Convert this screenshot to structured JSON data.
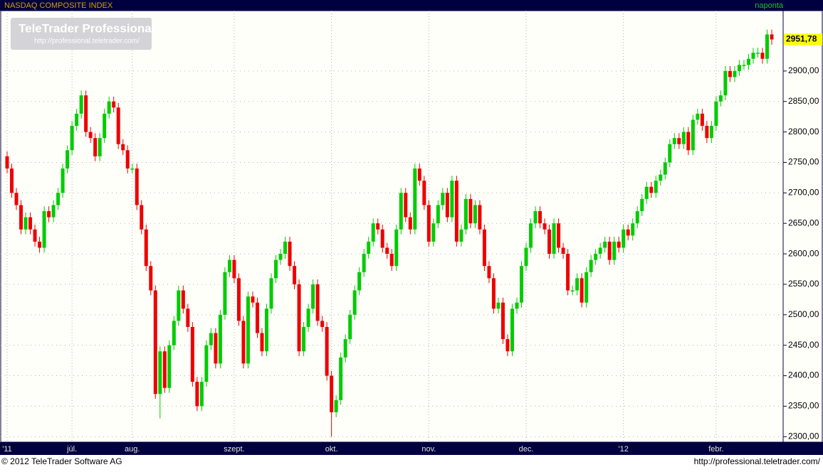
{
  "header": {
    "logo": "TeleTrader Professional",
    "logo_url": "http://professional.teletrader.com/"
  },
  "footer": {
    "copyright": "© 2012 TeleTrader Software AG",
    "url": "http://professional.teletrader.com/"
  },
  "chart_data": {
    "type": "candlestick",
    "title": "NASDAQ COMPOSITE INDEX",
    "interval": "naponta",
    "up_color": "#00cc00",
    "down_color": "#ee0000",
    "grid": true,
    "ylim": [
      2291,
      2999
    ],
    "yticks": [
      {
        "value": 2300,
        "label": "2300,00"
      },
      {
        "value": 2350,
        "label": "2350,00"
      },
      {
        "value": 2400,
        "label": "2400,00"
      },
      {
        "value": 2450,
        "label": "2450,00"
      },
      {
        "value": 2500,
        "label": "2500,00"
      },
      {
        "value": 2550,
        "label": "2550,00"
      },
      {
        "value": 2600,
        "label": "2600,00"
      },
      {
        "value": 2650,
        "label": "2650,00"
      },
      {
        "value": 2700,
        "label": "2700,00"
      },
      {
        "value": 2750,
        "label": "2750,00"
      },
      {
        "value": 2800,
        "label": "2800,00"
      },
      {
        "value": 2850,
        "label": "2850,00"
      },
      {
        "value": 2900,
        "label": "2900,00"
      }
    ],
    "xticks": [
      {
        "value": 0,
        "label": "'11"
      },
      {
        "value": 14,
        "label": "júl."
      },
      {
        "value": 27,
        "label": "aug."
      },
      {
        "value": 49,
        "label": "szept."
      },
      {
        "value": 70,
        "label": "okt."
      },
      {
        "value": 91,
        "label": "nov."
      },
      {
        "value": 112,
        "label": "dec."
      },
      {
        "value": 133,
        "label": "'12"
      },
      {
        "value": 153,
        "label": "febr."
      }
    ],
    "last_value": {
      "value": 2951.78,
      "label": "2951,78"
    },
    "open": [
      2760,
      2740,
      2700,
      2680,
      2640,
      2660,
      2640,
      2620,
      2610,
      2670,
      2660,
      2680,
      2700,
      2740,
      2770,
      2810,
      2830,
      2860,
      2800,
      2790,
      2760,
      2790,
      2830,
      2850,
      2840,
      2780,
      2770,
      2740,
      2740,
      2680,
      2640,
      2580,
      2540,
      2370,
      2440,
      2380,
      2450,
      2490,
      2540,
      2510,
      2480,
      2390,
      2350,
      2390,
      2450,
      2470,
      2420,
      2500,
      2570,
      2590,
      2560,
      2490,
      2420,
      2530,
      2520,
      2470,
      2440,
      2510,
      2560,
      2590,
      2600,
      2620,
      2580,
      2550,
      2440,
      2480,
      2510,
      2550,
      2490,
      2480,
      2400,
      2340,
      2360,
      2430,
      2460,
      2500,
      2540,
      2570,
      2600,
      2620,
      2650,
      2640,
      2610,
      2600,
      2580,
      2640,
      2700,
      2660,
      2640,
      2740,
      2720,
      2680,
      2620,
      2650,
      2680,
      2700,
      2660,
      2720,
      2620,
      2640,
      2690,
      2650,
      2680,
      2640,
      2580,
      2560,
      2510,
      2520,
      2460,
      2440,
      2510,
      2520,
      2580,
      2610,
      2650,
      2670,
      2650,
      2640,
      2600,
      2650,
      2610,
      2600,
      2540,
      2540,
      2560,
      2520,
      2570,
      2590,
      2600,
      2610,
      2620,
      2590,
      2620,
      2610,
      2640,
      2630,
      2650,
      2670,
      2690,
      2710,
      2700,
      2720,
      2730,
      2750,
      2780,
      2790,
      2780,
      2800,
      2770,
      2820,
      2830,
      2810,
      2790,
      2810,
      2850,
      2860,
      2900,
      2890,
      2900,
      2910,
      2910,
      2920,
      2930,
      2930,
      2920,
      2960
    ],
    "high": [
      2768,
      2748,
      2708,
      2688,
      2668,
      2668,
      2648,
      2628,
      2678,
      2678,
      2688,
      2708,
      2748,
      2778,
      2818,
      2838,
      2868,
      2868,
      2808,
      2798,
      2798,
      2838,
      2858,
      2858,
      2848,
      2788,
      2778,
      2748,
      2748,
      2688,
      2648,
      2588,
      2548,
      2448,
      2448,
      2458,
      2498,
      2548,
      2548,
      2518,
      2488,
      2398,
      2398,
      2458,
      2478,
      2478,
      2508,
      2578,
      2598,
      2598,
      2568,
      2498,
      2538,
      2538,
      2528,
      2478,
      2518,
      2568,
      2598,
      2608,
      2628,
      2628,
      2588,
      2558,
      2488,
      2518,
      2558,
      2558,
      2498,
      2488,
      2408,
      2368,
      2438,
      2468,
      2508,
      2548,
      2578,
      2608,
      2628,
      2658,
      2658,
      2648,
      2618,
      2608,
      2648,
      2708,
      2708,
      2668,
      2748,
      2748,
      2728,
      2688,
      2658,
      2688,
      2708,
      2708,
      2728,
      2728,
      2648,
      2698,
      2698,
      2688,
      2688,
      2648,
      2588,
      2568,
      2528,
      2528,
      2468,
      2518,
      2528,
      2588,
      2618,
      2658,
      2678,
      2678,
      2658,
      2648,
      2658,
      2658,
      2618,
      2608,
      2548,
      2568,
      2568,
      2578,
      2598,
      2608,
      2618,
      2628,
      2628,
      2628,
      2628,
      2648,
      2648,
      2658,
      2678,
      2698,
      2718,
      2718,
      2728,
      2738,
      2758,
      2788,
      2798,
      2798,
      2808,
      2808,
      2828,
      2838,
      2838,
      2818,
      2818,
      2858,
      2868,
      2908,
      2908,
      2908,
      2918,
      2918,
      2928,
      2938,
      2938,
      2938,
      2968,
      2968
    ],
    "low": [
      2732,
      2692,
      2672,
      2632,
      2632,
      2632,
      2612,
      2602,
      2602,
      2652,
      2652,
      2672,
      2692,
      2732,
      2762,
      2802,
      2822,
      2792,
      2782,
      2752,
      2752,
      2782,
      2822,
      2832,
      2772,
      2762,
      2732,
      2732,
      2672,
      2632,
      2572,
      2532,
      2362,
      2330,
      2372,
      2372,
      2442,
      2482,
      2502,
      2472,
      2382,
      2342,
      2342,
      2382,
      2442,
      2412,
      2412,
      2492,
      2562,
      2552,
      2482,
      2412,
      2412,
      2512,
      2462,
      2432,
      2432,
      2502,
      2552,
      2582,
      2592,
      2572,
      2542,
      2432,
      2432,
      2472,
      2502,
      2482,
      2472,
      2392,
      2300,
      2332,
      2352,
      2422,
      2452,
      2492,
      2532,
      2562,
      2592,
      2612,
      2632,
      2602,
      2592,
      2572,
      2572,
      2632,
      2652,
      2632,
      2632,
      2712,
      2672,
      2612,
      2612,
      2642,
      2672,
      2652,
      2652,
      2612,
      2612,
      2632,
      2642,
      2642,
      2632,
      2572,
      2552,
      2502,
      2502,
      2452,
      2432,
      2432,
      2502,
      2512,
      2572,
      2602,
      2642,
      2642,
      2632,
      2592,
      2592,
      2602,
      2592,
      2532,
      2532,
      2532,
      2512,
      2512,
      2562,
      2582,
      2592,
      2602,
      2582,
      2582,
      2602,
      2602,
      2622,
      2622,
      2642,
      2662,
      2682,
      2692,
      2692,
      2712,
      2722,
      2742,
      2772,
      2772,
      2772,
      2762,
      2762,
      2812,
      2802,
      2782,
      2782,
      2802,
      2842,
      2852,
      2882,
      2882,
      2892,
      2902,
      2902,
      2912,
      2922,
      2912,
      2912,
      2943
    ],
    "close": [
      2740,
      2700,
      2680,
      2640,
      2660,
      2640,
      2620,
      2610,
      2670,
      2660,
      2680,
      2700,
      2740,
      2770,
      2810,
      2830,
      2860,
      2800,
      2790,
      2760,
      2790,
      2830,
      2850,
      2840,
      2780,
      2770,
      2740,
      2740,
      2680,
      2640,
      2580,
      2540,
      2370,
      2440,
      2380,
      2450,
      2490,
      2540,
      2510,
      2480,
      2390,
      2350,
      2390,
      2450,
      2470,
      2420,
      2500,
      2570,
      2590,
      2560,
      2490,
      2420,
      2530,
      2520,
      2470,
      2440,
      2510,
      2560,
      2590,
      2600,
      2620,
      2580,
      2550,
      2440,
      2480,
      2510,
      2550,
      2490,
      2480,
      2400,
      2340,
      2360,
      2430,
      2460,
      2500,
      2540,
      2570,
      2600,
      2620,
      2650,
      2640,
      2610,
      2600,
      2580,
      2640,
      2700,
      2660,
      2640,
      2740,
      2720,
      2680,
      2620,
      2650,
      2680,
      2700,
      2660,
      2720,
      2620,
      2640,
      2690,
      2650,
      2680,
      2640,
      2580,
      2560,
      2510,
      2520,
      2460,
      2440,
      2510,
      2520,
      2580,
      2610,
      2650,
      2670,
      2650,
      2640,
      2600,
      2650,
      2610,
      2600,
      2540,
      2540,
      2560,
      2520,
      2570,
      2590,
      2600,
      2610,
      2620,
      2590,
      2620,
      2610,
      2640,
      2630,
      2650,
      2670,
      2690,
      2710,
      2700,
      2720,
      2730,
      2750,
      2780,
      2790,
      2780,
      2800,
      2770,
      2820,
      2830,
      2810,
      2790,
      2810,
      2850,
      2860,
      2900,
      2890,
      2900,
      2910,
      2910,
      2920,
      2930,
      2930,
      2920,
      2960,
      2951.78
    ]
  }
}
